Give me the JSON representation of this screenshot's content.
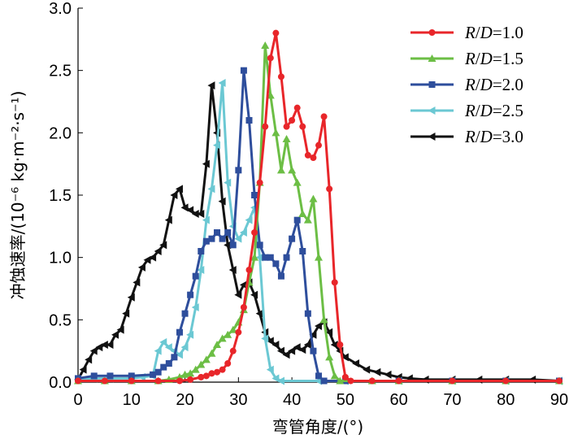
{
  "chart_data": {
    "type": "line",
    "title": "",
    "xlabel": "弯管角度/(°)",
    "ylabel": "冲蚀速率/(10⁻⁶ kg·m⁻²·s⁻¹)",
    "xlim": [
      0,
      90
    ],
    "ylim": [
      0,
      3.0
    ],
    "x_ticks": [
      "0",
      "10",
      "20",
      "30",
      "40",
      "50",
      "60",
      "70",
      "80",
      "90"
    ],
    "y_ticks": [
      "0.0",
      "0.5",
      "1.0",
      "1.5",
      "2.0",
      "2.5",
      "3.0"
    ],
    "grid": false,
    "legend_position": "top-right",
    "series": [
      {
        "name": "R/D=1.0",
        "name_italic_r": "R",
        "name_slash": "/",
        "name_italic_d": "D",
        "name_value": "=1.0",
        "color": "#e8262a",
        "marker": "circle",
        "points": [
          [
            0,
            0.01
          ],
          [
            5,
            0.01
          ],
          [
            10,
            0.01
          ],
          [
            15,
            0.01
          ],
          [
            19,
            0.01
          ],
          [
            21,
            0.02
          ],
          [
            23,
            0.04
          ],
          [
            24,
            0.05
          ],
          [
            25,
            0.07
          ],
          [
            26,
            0.08
          ],
          [
            27,
            0.1
          ],
          [
            28,
            0.15
          ],
          [
            29,
            0.25
          ],
          [
            30,
            0.4
          ],
          [
            31,
            0.6
          ],
          [
            32,
            0.9
          ],
          [
            33,
            1.2
          ],
          [
            34,
            1.6
          ],
          [
            35,
            2.05
          ],
          [
            36,
            2.6
          ],
          [
            37,
            2.8
          ],
          [
            38,
            2.45
          ],
          [
            39,
            2.05
          ],
          [
            40,
            2.1
          ],
          [
            41,
            2.2
          ],
          [
            42,
            2.05
          ],
          [
            43,
            1.82
          ],
          [
            44,
            1.8
          ],
          [
            45,
            1.9
          ],
          [
            46,
            2.13
          ],
          [
            47,
            1.55
          ],
          [
            48,
            0.8
          ],
          [
            49,
            0.3
          ],
          [
            50,
            0.04
          ],
          [
            51,
            0.01
          ],
          [
            55,
            0.01
          ],
          [
            60,
            0.01
          ],
          [
            70,
            0.01
          ],
          [
            80,
            0.01
          ],
          [
            90,
            0.01
          ]
        ]
      },
      {
        "name": "R/D=1.5",
        "name_italic_r": "R",
        "name_slash": "/",
        "name_italic_d": "D",
        "name_value": "=1.5",
        "color": "#6cbe45",
        "marker": "triangle",
        "points": [
          [
            0,
            0.01
          ],
          [
            5,
            0.01
          ],
          [
            10,
            0.01
          ],
          [
            15,
            0.01
          ],
          [
            17,
            0.02
          ],
          [
            19,
            0.04
          ],
          [
            20,
            0.06
          ],
          [
            21,
            0.07
          ],
          [
            22,
            0.1
          ],
          [
            23,
            0.14
          ],
          [
            24,
            0.18
          ],
          [
            25,
            0.23
          ],
          [
            26,
            0.3
          ],
          [
            27,
            0.35
          ],
          [
            28,
            0.38
          ],
          [
            29,
            0.42
          ],
          [
            30,
            0.48
          ],
          [
            31,
            0.58
          ],
          [
            32,
            0.8
          ],
          [
            33,
            1.0
          ],
          [
            34,
            1.6
          ],
          [
            35,
            2.7
          ],
          [
            36,
            2.3
          ],
          [
            37,
            2.0
          ],
          [
            38,
            1.7
          ],
          [
            39,
            1.95
          ],
          [
            40,
            1.7
          ],
          [
            41,
            1.6
          ],
          [
            42,
            1.35
          ],
          [
            43,
            1.3
          ],
          [
            44,
            1.47
          ],
          [
            45,
            1.0
          ],
          [
            46,
            0.5
          ],
          [
            47,
            0.2
          ],
          [
            48,
            0.05
          ],
          [
            49,
            0.01
          ],
          [
            55,
            0.01
          ],
          [
            60,
            0.01
          ],
          [
            70,
            0.01
          ],
          [
            80,
            0.01
          ],
          [
            90,
            0.01
          ]
        ]
      },
      {
        "name": "R/D=2.0",
        "name_italic_r": "R",
        "name_slash": "/",
        "name_italic_d": "D",
        "name_value": "=2.0",
        "color": "#2e4e9c",
        "marker": "square",
        "points": [
          [
            0,
            0.03
          ],
          [
            3,
            0.05
          ],
          [
            6,
            0.05
          ],
          [
            10,
            0.05
          ],
          [
            14,
            0.06
          ],
          [
            15,
            0.08
          ],
          [
            16,
            0.12
          ],
          [
            17,
            0.15
          ],
          [
            18,
            0.2
          ],
          [
            19,
            0.4
          ],
          [
            20,
            0.55
          ],
          [
            21,
            0.7
          ],
          [
            22,
            0.85
          ],
          [
            23,
            1.05
          ],
          [
            24,
            1.13
          ],
          [
            25,
            1.15
          ],
          [
            26,
            1.2
          ],
          [
            27,
            1.15
          ],
          [
            28,
            1.2
          ],
          [
            29,
            1.1
          ],
          [
            30,
            1.7
          ],
          [
            31,
            2.5
          ],
          [
            32,
            2.1
          ],
          [
            33,
            1.5
          ],
          [
            34,
            1.1
          ],
          [
            35,
            1.0
          ],
          [
            36,
            1.0
          ],
          [
            37,
            0.95
          ],
          [
            38,
            0.85
          ],
          [
            39,
            1.0
          ],
          [
            40,
            1.15
          ],
          [
            41,
            1.3
          ],
          [
            42,
            1.05
          ],
          [
            43,
            0.55
          ],
          [
            44,
            0.25
          ],
          [
            45,
            0.05
          ],
          [
            46,
            0.01
          ],
          [
            50,
            0.01
          ],
          [
            60,
            0.01
          ],
          [
            70,
            0.01
          ],
          [
            80,
            0.01
          ],
          [
            90,
            0.01
          ]
        ]
      },
      {
        "name": "R/D=2.5",
        "name_italic_r": "R",
        "name_slash": "/",
        "name_italic_d": "D",
        "name_value": "=2.5",
        "color": "#6bc8d3",
        "marker": "triangle-left",
        "points": [
          [
            0,
            0.02
          ],
          [
            3,
            0.03
          ],
          [
            6,
            0.03
          ],
          [
            10,
            0.03
          ],
          [
            12,
            0.04
          ],
          [
            14,
            0.05
          ],
          [
            15,
            0.25
          ],
          [
            16,
            0.32
          ],
          [
            17,
            0.28
          ],
          [
            18,
            0.25
          ],
          [
            19,
            0.22
          ],
          [
            20,
            0.28
          ],
          [
            21,
            0.38
          ],
          [
            22,
            0.6
          ],
          [
            23,
            0.9
          ],
          [
            24,
            1.3
          ],
          [
            25,
            1.55
          ],
          [
            26,
            1.9
          ],
          [
            27,
            2.4
          ],
          [
            28,
            1.6
          ],
          [
            29,
            1.25
          ],
          [
            30,
            1.15
          ],
          [
            31,
            1.2
          ],
          [
            32,
            1.3
          ],
          [
            33,
            1.4
          ],
          [
            34,
            1.0
          ],
          [
            35,
            0.35
          ],
          [
            36,
            0.1
          ],
          [
            37,
            0.03
          ],
          [
            38,
            0.01
          ],
          [
            45,
            0.01
          ],
          [
            50,
            0.01
          ],
          [
            60,
            0.01
          ],
          [
            70,
            0.01
          ],
          [
            80,
            0.01
          ],
          [
            90,
            0.01
          ]
        ]
      },
      {
        "name": "R/D=3.0",
        "name_italic_r": "R",
        "name_slash": "/",
        "name_italic_d": "D",
        "name_value": "=3.0",
        "color": "#111111",
        "marker": "triangle-left",
        "points": [
          [
            0,
            0.02
          ],
          [
            1,
            0.1
          ],
          [
            2,
            0.18
          ],
          [
            3,
            0.25
          ],
          [
            4,
            0.28
          ],
          [
            5,
            0.3
          ],
          [
            6,
            0.3
          ],
          [
            7,
            0.38
          ],
          [
            8,
            0.42
          ],
          [
            9,
            0.55
          ],
          [
            10,
            0.68
          ],
          [
            11,
            0.8
          ],
          [
            12,
            0.92
          ],
          [
            13,
            0.98
          ],
          [
            14,
            1.0
          ],
          [
            15,
            1.05
          ],
          [
            16,
            1.1
          ],
          [
            17,
            1.3
          ],
          [
            18,
            1.5
          ],
          [
            19,
            1.55
          ],
          [
            20,
            1.4
          ],
          [
            21,
            1.38
          ],
          [
            22,
            1.35
          ],
          [
            23,
            1.35
          ],
          [
            24,
            1.75
          ],
          [
            25,
            2.38
          ],
          [
            26,
            2.0
          ],
          [
            27,
            1.45
          ],
          [
            28,
            1.1
          ],
          [
            29,
            0.9
          ],
          [
            30,
            0.7
          ],
          [
            31,
            0.78
          ],
          [
            32,
            0.8
          ],
          [
            33,
            0.7
          ],
          [
            34,
            0.55
          ],
          [
            35,
            0.4
          ],
          [
            36,
            0.33
          ],
          [
            37,
            0.3
          ],
          [
            38,
            0.25
          ],
          [
            39,
            0.22
          ],
          [
            40,
            0.25
          ],
          [
            41,
            0.28
          ],
          [
            42,
            0.26
          ],
          [
            43,
            0.3
          ],
          [
            44,
            0.38
          ],
          [
            45,
            0.45
          ],
          [
            46,
            0.48
          ],
          [
            47,
            0.4
          ],
          [
            48,
            0.3
          ],
          [
            49,
            0.25
          ],
          [
            50,
            0.2
          ],
          [
            52,
            0.15
          ],
          [
            54,
            0.1
          ],
          [
            56,
            0.08
          ],
          [
            58,
            0.06
          ],
          [
            60,
            0.04
          ],
          [
            62,
            0.03
          ],
          [
            65,
            0.02
          ],
          [
            70,
            0.02
          ],
          [
            75,
            0.02
          ],
          [
            80,
            0.02
          ],
          [
            85,
            0.02
          ],
          [
            90,
            0.01
          ]
        ]
      }
    ]
  }
}
